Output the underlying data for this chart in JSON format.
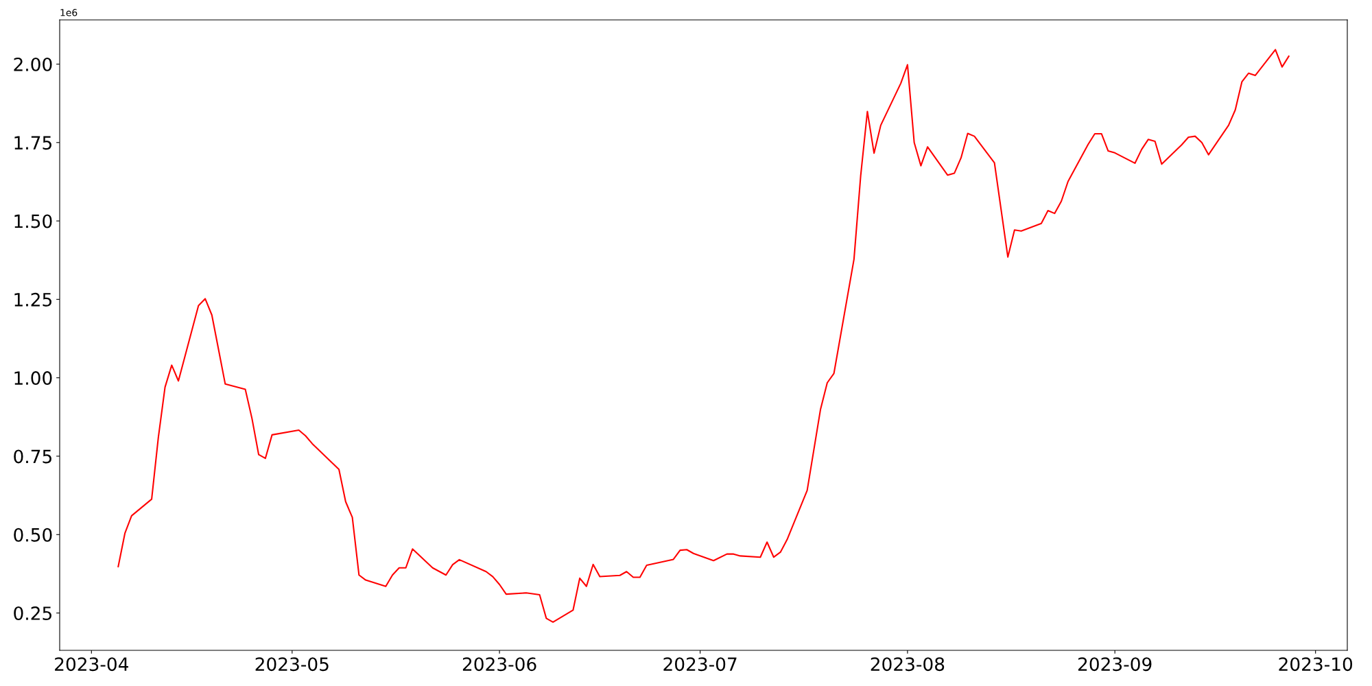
{
  "chart_data": {
    "type": "line",
    "annotations": [
      "1e6"
    ],
    "x": [
      "2023-04-05",
      "2023-04-06",
      "2023-04-07",
      "2023-04-10",
      "2023-04-11",
      "2023-04-12",
      "2023-04-13",
      "2023-04-14",
      "2023-04-17",
      "2023-04-18",
      "2023-04-19",
      "2023-04-20",
      "2023-04-21",
      "2023-04-24",
      "2023-04-25",
      "2023-04-26",
      "2023-04-27",
      "2023-04-28",
      "2023-05-02",
      "2023-05-03",
      "2023-05-04",
      "2023-05-08",
      "2023-05-09",
      "2023-05-10",
      "2023-05-11",
      "2023-05-12",
      "2023-05-15",
      "2023-05-16",
      "2023-05-17",
      "2023-05-18",
      "2023-05-19",
      "2023-05-22",
      "2023-05-24",
      "2023-05-25",
      "2023-05-26",
      "2023-05-30",
      "2023-05-31",
      "2023-06-01",
      "2023-06-02",
      "2023-06-05",
      "2023-06-07",
      "2023-06-08",
      "2023-06-09",
      "2023-06-12",
      "2023-06-13",
      "2023-06-14",
      "2023-06-15",
      "2023-06-16",
      "2023-06-19",
      "2023-06-20",
      "2023-06-21",
      "2023-06-22",
      "2023-06-23",
      "2023-06-27",
      "2023-06-28",
      "2023-06-29",
      "2023-06-30",
      "2023-07-03",
      "2023-07-05",
      "2023-07-06",
      "2023-07-07",
      "2023-07-10",
      "2023-07-11",
      "2023-07-12",
      "2023-07-13",
      "2023-07-14",
      "2023-07-17",
      "2023-07-19",
      "2023-07-20",
      "2023-07-21",
      "2023-07-24",
      "2023-07-25",
      "2023-07-26",
      "2023-07-27",
      "2023-07-28",
      "2023-07-31",
      "2023-08-01",
      "2023-08-02",
      "2023-08-03",
      "2023-08-04",
      "2023-08-07",
      "2023-08-08",
      "2023-08-09",
      "2023-08-10",
      "2023-08-11",
      "2023-08-14",
      "2023-08-16",
      "2023-08-17",
      "2023-08-18",
      "2023-08-21",
      "2023-08-22",
      "2023-08-23",
      "2023-08-24",
      "2023-08-25",
      "2023-08-28",
      "2023-08-29",
      "2023-08-30",
      "2023-08-31",
      "2023-09-01",
      "2023-09-04",
      "2023-09-05",
      "2023-09-06",
      "2023-09-07",
      "2023-09-08",
      "2023-09-11",
      "2023-09-12",
      "2023-09-13",
      "2023-09-14",
      "2023-09-15",
      "2023-09-18",
      "2023-09-19",
      "2023-09-20",
      "2023-09-21",
      "2023-09-22",
      "2023-09-25",
      "2023-09-26",
      "2023-09-27"
    ],
    "series": [
      {
        "color": "#ff0000",
        "values": [
          0.398,
          0.504,
          0.56,
          0.613,
          0.81,
          0.97,
          1.04,
          0.99,
          1.23,
          1.252,
          1.2,
          1.09,
          0.98,
          0.963,
          0.87,
          0.755,
          0.743,
          0.818,
          0.833,
          0.815,
          0.79,
          0.708,
          0.605,
          0.555,
          0.371,
          0.355,
          0.335,
          0.371,
          0.394,
          0.394,
          0.454,
          0.394,
          0.371,
          0.404,
          0.42,
          0.382,
          0.366,
          0.341,
          0.31,
          0.314,
          0.308,
          0.233,
          0.221,
          0.259,
          0.361,
          0.335,
          0.405,
          0.366,
          0.37,
          0.382,
          0.364,
          0.364,
          0.402,
          0.421,
          0.45,
          0.452,
          0.44,
          0.417,
          0.438,
          0.438,
          0.432,
          0.428,
          0.476,
          0.428,
          0.444,
          0.484,
          0.641,
          0.9,
          0.984,
          1.014,
          1.378,
          1.644,
          1.849,
          1.716,
          1.805,
          1.939,
          1.998,
          1.75,
          1.676,
          1.736,
          1.646,
          1.652,
          1.701,
          1.779,
          1.77,
          1.685,
          1.385,
          1.471,
          1.468,
          1.492,
          1.533,
          1.524,
          1.563,
          1.626,
          1.744,
          1.778,
          1.778,
          1.723,
          1.717,
          1.684,
          1.728,
          1.76,
          1.754,
          1.681,
          1.743,
          1.767,
          1.77,
          1.75,
          1.711,
          1.805,
          1.854,
          1.944,
          1.971,
          1.964,
          2.046,
          1.991,
          2.025
        ]
      }
    ],
    "xlim": [
      "2023-03-27T06:00",
      "2023-10-05T18:00"
    ],
    "xticks": [
      {
        "value": "2023-04-01",
        "label": "2023-04"
      },
      {
        "value": "2023-05-01",
        "label": "2023-05"
      },
      {
        "value": "2023-06-01",
        "label": "2023-06"
      },
      {
        "value": "2023-07-01",
        "label": "2023-07"
      },
      {
        "value": "2023-08-01",
        "label": "2023-08"
      },
      {
        "value": "2023-09-01",
        "label": "2023-09"
      },
      {
        "value": "2023-10-01",
        "label": "2023-10"
      }
    ],
    "ylim": [
      0.131,
      2.141
    ],
    "yticks": [
      0.25,
      {
        "value": 0.5,
        "label": "0.50"
      },
      0.75,
      {
        "value": 1,
        "label": "1.00"
      },
      1.25,
      {
        "value": 1.5,
        "label": "1.50"
      },
      1.75,
      {
        "value": 2,
        "label": "2.00"
      }
    ],
    "grid": false,
    "line_style": "solid",
    "marker": "none"
  }
}
